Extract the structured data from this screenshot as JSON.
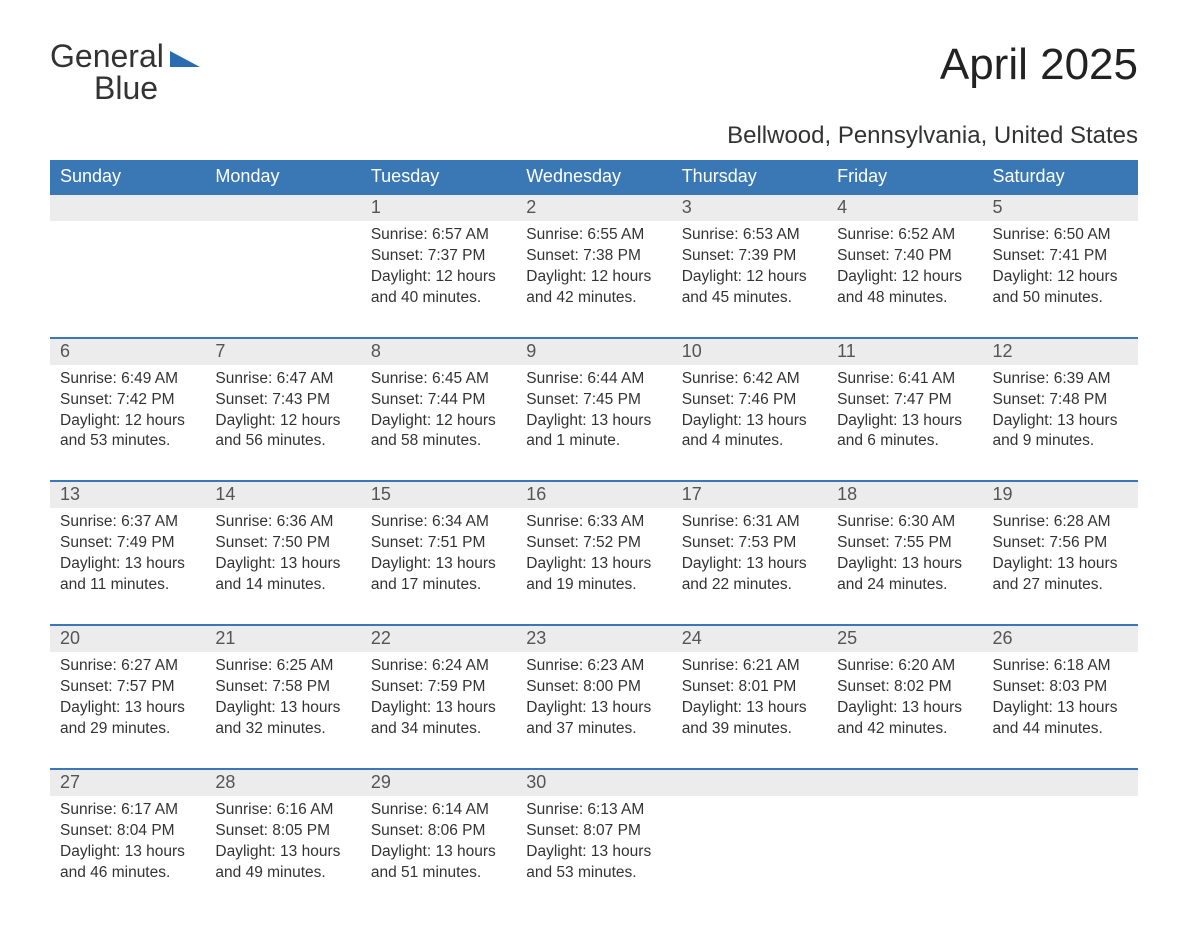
{
  "logo": {
    "line1": "General",
    "line2": "Blue"
  },
  "title": "April 2025",
  "location": "Bellwood, Pennsylvania, United States",
  "colors": {
    "header_bg": "#3a78b5",
    "header_text": "#ffffff",
    "daynum_bg": "#ececec",
    "daynum_text": "#555555",
    "body_text": "#333333",
    "row_border": "#3a78b5",
    "logo_blue": "#2b6cb0",
    "page_bg": "#ffffff"
  },
  "typography": {
    "title_fontsize": 44,
    "location_fontsize": 24,
    "header_fontsize": 18,
    "daynum_fontsize": 18,
    "cell_fontsize": 15.5,
    "logo_fontsize": 32
  },
  "weekdays": [
    "Sunday",
    "Monday",
    "Tuesday",
    "Wednesday",
    "Thursday",
    "Friday",
    "Saturday"
  ],
  "weeks": [
    [
      null,
      null,
      {
        "n": "1",
        "sunrise": "Sunrise: 6:57 AM",
        "sunset": "Sunset: 7:37 PM",
        "daylight": "Daylight: 12 hours and 40 minutes."
      },
      {
        "n": "2",
        "sunrise": "Sunrise: 6:55 AM",
        "sunset": "Sunset: 7:38 PM",
        "daylight": "Daylight: 12 hours and 42 minutes."
      },
      {
        "n": "3",
        "sunrise": "Sunrise: 6:53 AM",
        "sunset": "Sunset: 7:39 PM",
        "daylight": "Daylight: 12 hours and 45 minutes."
      },
      {
        "n": "4",
        "sunrise": "Sunrise: 6:52 AM",
        "sunset": "Sunset: 7:40 PM",
        "daylight": "Daylight: 12 hours and 48 minutes."
      },
      {
        "n": "5",
        "sunrise": "Sunrise: 6:50 AM",
        "sunset": "Sunset: 7:41 PM",
        "daylight": "Daylight: 12 hours and 50 minutes."
      }
    ],
    [
      {
        "n": "6",
        "sunrise": "Sunrise: 6:49 AM",
        "sunset": "Sunset: 7:42 PM",
        "daylight": "Daylight: 12 hours and 53 minutes."
      },
      {
        "n": "7",
        "sunrise": "Sunrise: 6:47 AM",
        "sunset": "Sunset: 7:43 PM",
        "daylight": "Daylight: 12 hours and 56 minutes."
      },
      {
        "n": "8",
        "sunrise": "Sunrise: 6:45 AM",
        "sunset": "Sunset: 7:44 PM",
        "daylight": "Daylight: 12 hours and 58 minutes."
      },
      {
        "n": "9",
        "sunrise": "Sunrise: 6:44 AM",
        "sunset": "Sunset: 7:45 PM",
        "daylight": "Daylight: 13 hours and 1 minute."
      },
      {
        "n": "10",
        "sunrise": "Sunrise: 6:42 AM",
        "sunset": "Sunset: 7:46 PM",
        "daylight": "Daylight: 13 hours and 4 minutes."
      },
      {
        "n": "11",
        "sunrise": "Sunrise: 6:41 AM",
        "sunset": "Sunset: 7:47 PM",
        "daylight": "Daylight: 13 hours and 6 minutes."
      },
      {
        "n": "12",
        "sunrise": "Sunrise: 6:39 AM",
        "sunset": "Sunset: 7:48 PM",
        "daylight": "Daylight: 13 hours and 9 minutes."
      }
    ],
    [
      {
        "n": "13",
        "sunrise": "Sunrise: 6:37 AM",
        "sunset": "Sunset: 7:49 PM",
        "daylight": "Daylight: 13 hours and 11 minutes."
      },
      {
        "n": "14",
        "sunrise": "Sunrise: 6:36 AM",
        "sunset": "Sunset: 7:50 PM",
        "daylight": "Daylight: 13 hours and 14 minutes."
      },
      {
        "n": "15",
        "sunrise": "Sunrise: 6:34 AM",
        "sunset": "Sunset: 7:51 PM",
        "daylight": "Daylight: 13 hours and 17 minutes."
      },
      {
        "n": "16",
        "sunrise": "Sunrise: 6:33 AM",
        "sunset": "Sunset: 7:52 PM",
        "daylight": "Daylight: 13 hours and 19 minutes."
      },
      {
        "n": "17",
        "sunrise": "Sunrise: 6:31 AM",
        "sunset": "Sunset: 7:53 PM",
        "daylight": "Daylight: 13 hours and 22 minutes."
      },
      {
        "n": "18",
        "sunrise": "Sunrise: 6:30 AM",
        "sunset": "Sunset: 7:55 PM",
        "daylight": "Daylight: 13 hours and 24 minutes."
      },
      {
        "n": "19",
        "sunrise": "Sunrise: 6:28 AM",
        "sunset": "Sunset: 7:56 PM",
        "daylight": "Daylight: 13 hours and 27 minutes."
      }
    ],
    [
      {
        "n": "20",
        "sunrise": "Sunrise: 6:27 AM",
        "sunset": "Sunset: 7:57 PM",
        "daylight": "Daylight: 13 hours and 29 minutes."
      },
      {
        "n": "21",
        "sunrise": "Sunrise: 6:25 AM",
        "sunset": "Sunset: 7:58 PM",
        "daylight": "Daylight: 13 hours and 32 minutes."
      },
      {
        "n": "22",
        "sunrise": "Sunrise: 6:24 AM",
        "sunset": "Sunset: 7:59 PM",
        "daylight": "Daylight: 13 hours and 34 minutes."
      },
      {
        "n": "23",
        "sunrise": "Sunrise: 6:23 AM",
        "sunset": "Sunset: 8:00 PM",
        "daylight": "Daylight: 13 hours and 37 minutes."
      },
      {
        "n": "24",
        "sunrise": "Sunrise: 6:21 AM",
        "sunset": "Sunset: 8:01 PM",
        "daylight": "Daylight: 13 hours and 39 minutes."
      },
      {
        "n": "25",
        "sunrise": "Sunrise: 6:20 AM",
        "sunset": "Sunset: 8:02 PM",
        "daylight": "Daylight: 13 hours and 42 minutes."
      },
      {
        "n": "26",
        "sunrise": "Sunrise: 6:18 AM",
        "sunset": "Sunset: 8:03 PM",
        "daylight": "Daylight: 13 hours and 44 minutes."
      }
    ],
    [
      {
        "n": "27",
        "sunrise": "Sunrise: 6:17 AM",
        "sunset": "Sunset: 8:04 PM",
        "daylight": "Daylight: 13 hours and 46 minutes."
      },
      {
        "n": "28",
        "sunrise": "Sunrise: 6:16 AM",
        "sunset": "Sunset: 8:05 PM",
        "daylight": "Daylight: 13 hours and 49 minutes."
      },
      {
        "n": "29",
        "sunrise": "Sunrise: 6:14 AM",
        "sunset": "Sunset: 8:06 PM",
        "daylight": "Daylight: 13 hours and 51 minutes."
      },
      {
        "n": "30",
        "sunrise": "Sunrise: 6:13 AM",
        "sunset": "Sunset: 8:07 PM",
        "daylight": "Daylight: 13 hours and 53 minutes."
      },
      null,
      null,
      null
    ]
  ]
}
